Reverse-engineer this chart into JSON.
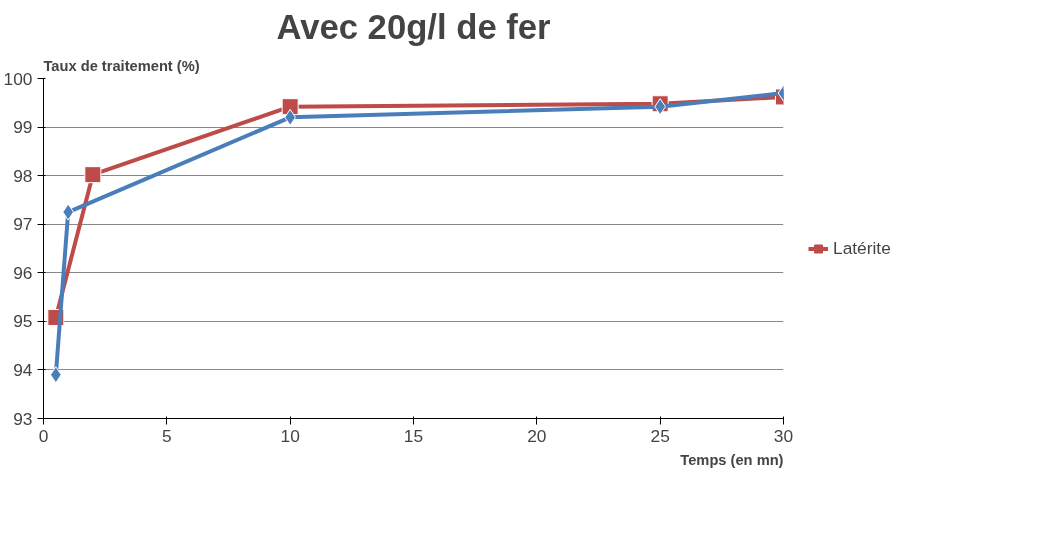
{
  "chart_data": {
    "type": "line",
    "title": "Avec 20g/l de fer",
    "xlabel": "Temps (en mn)",
    "ylabel": "Taux de traitement (%)",
    "xlim": [
      0,
      30
    ],
    "xticks": [
      0,
      5,
      10,
      15,
      20,
      25,
      30
    ],
    "ylim": [
      93,
      100
    ],
    "yticks": [
      93,
      94,
      95,
      96,
      97,
      98,
      99,
      100
    ],
    "grid": "y",
    "legend": "right",
    "series": [
      {
        "color": "#4a7ebb",
        "marker": "diamond",
        "x": [
          0.5,
          1,
          10,
          25,
          30
        ],
        "values": [
          93.9,
          97.25,
          99.2,
          99.42,
          99.7
        ]
      },
      {
        "name": "Latérite",
        "color": "#be4b48",
        "marker": "square",
        "x": [
          0.5,
          2,
          10,
          25,
          30
        ],
        "values": [
          95.08,
          98.02,
          99.42,
          99.48,
          99.62
        ]
      }
    ]
  }
}
